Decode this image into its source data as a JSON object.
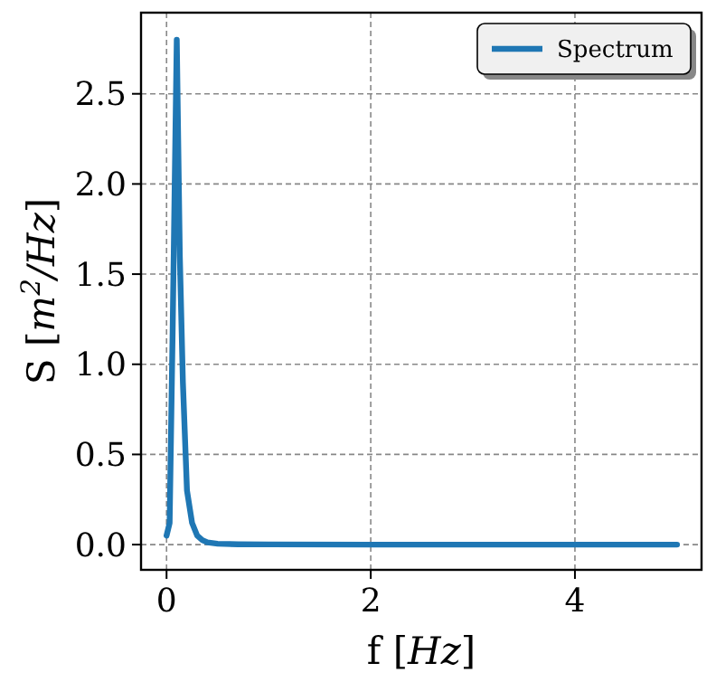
{
  "chart_data": {
    "type": "line",
    "xlabel": "f [Hz]",
    "ylabel": "S [m$^{2}$/Hz]",
    "series": [
      {
        "name": "Spectrum",
        "color": "#1f77b4",
        "x": [
          0,
          0.03,
          0.06,
          0.1,
          0.13,
          0.16,
          0.2,
          0.25,
          0.3,
          0.35,
          0.4,
          0.5,
          0.7,
          1,
          2,
          3,
          4,
          5
        ],
        "values": [
          0.05,
          0.12,
          1.2,
          2.8,
          1.6,
          0.9,
          0.3,
          0.12,
          0.05,
          0.025,
          0.012,
          0.005,
          0.002,
          0.001,
          0,
          0,
          0,
          0
        ]
      }
    ],
    "xlim": [
      -0.25,
      5.24
    ],
    "ylim": [
      -0.14,
      2.95
    ],
    "xticks": [
      0,
      2,
      4
    ],
    "yticks": [
      {
        "value": 0,
        "label": "0.0"
      },
      {
        "value": 0.5,
        "label": "0.5"
      },
      {
        "value": 1,
        "label": "1.0"
      },
      {
        "value": 1.5,
        "label": "1.5"
      },
      {
        "value": 2,
        "label": "2.0"
      },
      {
        "value": 2.5,
        "label": "2.5"
      }
    ],
    "grid": true,
    "legend": "top right",
    "line_style": "solid",
    "marker": "none"
  }
}
